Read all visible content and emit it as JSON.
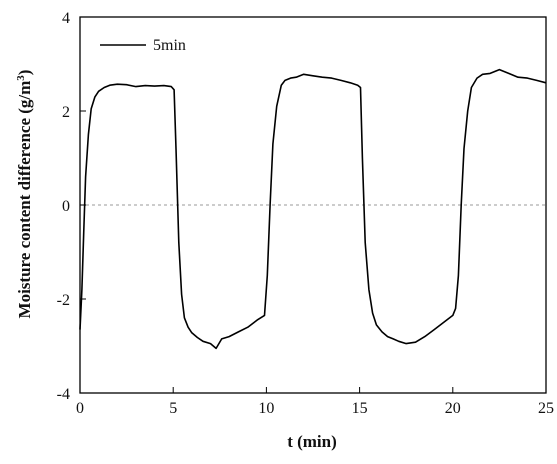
{
  "chart_data": {
    "type": "line",
    "xlabel": "t (min)",
    "ylabel_main": "Moisture content difference (g/m",
    "ylabel_sup": "3",
    "ylabel_close": ")",
    "xlim": [
      0,
      25
    ],
    "ylim": [
      -4,
      4
    ],
    "xticks": [
      0,
      5,
      10,
      15,
      20,
      25
    ],
    "yticks": [
      -4,
      -2,
      0,
      2,
      4
    ],
    "xtick_labels": [
      "0",
      "5",
      "10",
      "15",
      "20",
      "25"
    ],
    "ytick_labels": [
      "-4",
      "-2",
      "0",
      "2",
      "4"
    ],
    "reference_line": {
      "y": 0,
      "style": "dashed",
      "color": "#999999"
    },
    "grid": false,
    "legend": {
      "position": "top-left"
    },
    "series": [
      {
        "name": "5min",
        "color": "#000000",
        "x": [
          0.0,
          0.1,
          0.2,
          0.3,
          0.45,
          0.6,
          0.8,
          1.0,
          1.3,
          1.6,
          2.0,
          2.5,
          3.0,
          3.5,
          4.0,
          4.5,
          4.9,
          5.05,
          5.15,
          5.3,
          5.45,
          5.6,
          5.8,
          6.0,
          6.3,
          6.6,
          7.0,
          7.3,
          7.6,
          8.0,
          8.5,
          9.0,
          9.5,
          9.9,
          10.05,
          10.2,
          10.35,
          10.55,
          10.8,
          11.0,
          11.3,
          11.6,
          12.0,
          12.5,
          13.0,
          13.5,
          14.0,
          14.5,
          14.9,
          15.05,
          15.15,
          15.3,
          15.5,
          15.7,
          15.9,
          16.2,
          16.5,
          16.8,
          17.1,
          17.5,
          18.0,
          18.5,
          19.0,
          19.5,
          20.0,
          20.15,
          20.3,
          20.45,
          20.6,
          20.8,
          21.0,
          21.3,
          21.6,
          22.0,
          22.5,
          23.0,
          23.5,
          24.0,
          24.5,
          25.0
        ],
        "y": [
          -2.65,
          -1.8,
          -0.6,
          0.6,
          1.5,
          2.05,
          2.3,
          2.42,
          2.5,
          2.55,
          2.57,
          2.56,
          2.52,
          2.54,
          2.53,
          2.54,
          2.52,
          2.45,
          1.2,
          -0.8,
          -1.9,
          -2.4,
          -2.6,
          -2.72,
          -2.82,
          -2.9,
          -2.95,
          -3.05,
          -2.85,
          -2.8,
          -2.7,
          -2.6,
          -2.45,
          -2.35,
          -1.5,
          0.0,
          1.3,
          2.1,
          2.55,
          2.65,
          2.7,
          2.72,
          2.78,
          2.75,
          2.72,
          2.7,
          2.65,
          2.6,
          2.55,
          2.5,
          1.0,
          -0.8,
          -1.8,
          -2.3,
          -2.55,
          -2.7,
          -2.8,
          -2.85,
          -2.9,
          -2.95,
          -2.92,
          -2.8,
          -2.65,
          -2.5,
          -2.35,
          -2.2,
          -1.5,
          0.0,
          1.2,
          2.0,
          2.5,
          2.7,
          2.78,
          2.8,
          2.88,
          2.8,
          2.72,
          2.7,
          2.65,
          2.6
        ]
      }
    ]
  }
}
